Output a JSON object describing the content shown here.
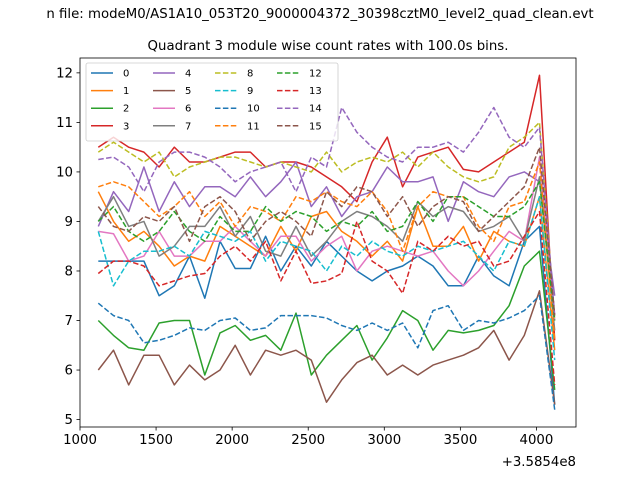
{
  "chart_data": {
    "type": "line",
    "suptitle": "n file: modeM0/AS1A10_053T20_9000004372_30398cztM0_level2_quad_clean.evt",
    "title": "Quadrant 3 module wise count rates with 100.0s bins.",
    "xlabel": "",
    "ylabel": "",
    "x_offset_label": "+3.5854e8",
    "xlim": [
      1000,
      4260
    ],
    "ylim": [
      4.85,
      12.3
    ],
    "x_ticks": [
      1000,
      1500,
      2000,
      2500,
      3000,
      3500,
      4000
    ],
    "x_tick_labels": [
      "1000",
      "1500",
      "2000",
      "2500",
      "3000",
      "3500",
      "4000"
    ],
    "y_ticks": [
      5,
      6,
      7,
      8,
      9,
      10,
      11,
      12
    ],
    "y_tick_labels": [
      "5",
      "6",
      "7",
      "8",
      "9",
      "10",
      "11",
      "12"
    ],
    "grid": false,
    "legend_position": "top-left",
    "legend_columns": 4,
    "x": [
      1120,
      1220,
      1320,
      1420,
      1520,
      1620,
      1720,
      1820,
      1920,
      2020,
      2120,
      2220,
      2320,
      2420,
      2520,
      2620,
      2720,
      2820,
      2920,
      3020,
      3120,
      3220,
      3320,
      3420,
      3520,
      3620,
      3720,
      3820,
      3920,
      4020,
      4120
    ],
    "series": [
      {
        "name": "0",
        "color": "#1f77b4",
        "dash": "solid",
        "values": [
          8.2,
          8.2,
          8.2,
          8.2,
          7.5,
          7.7,
          8.3,
          7.45,
          8.6,
          8.05,
          8.05,
          8.7,
          8.0,
          8.5,
          8.1,
          8.6,
          8.3,
          8.0,
          7.8,
          8.0,
          8.1,
          8.3,
          8.1,
          7.7,
          7.7,
          8.3,
          7.9,
          7.7,
          8.6,
          8.9,
          5.3
        ]
      },
      {
        "name": "1",
        "color": "#ff7f0e",
        "dash": "solid",
        "values": [
          9.6,
          9.0,
          8.6,
          8.8,
          8.5,
          8.1,
          8.3,
          8.2,
          8.9,
          8.7,
          8.5,
          8.3,
          8.9,
          8.4,
          9.1,
          9.2,
          8.8,
          8.6,
          8.3,
          8.6,
          8.2,
          9.3,
          8.5,
          8.5,
          8.9,
          8.2,
          8.8,
          8.6,
          8.5,
          9.5,
          6.4
        ]
      },
      {
        "name": "2",
        "color": "#2ca02c",
        "dash": "solid",
        "values": [
          7.0,
          6.7,
          6.45,
          6.4,
          6.95,
          7.0,
          7.0,
          5.9,
          6.75,
          6.9,
          6.6,
          6.7,
          6.4,
          7.15,
          5.9,
          6.3,
          6.6,
          6.9,
          6.2,
          6.65,
          7.2,
          7.0,
          6.4,
          6.8,
          6.75,
          6.8,
          6.9,
          7.3,
          8.1,
          8.4,
          5.6
        ]
      },
      {
        "name": "3",
        "color": "#d62728",
        "dash": "solid",
        "values": [
          10.5,
          10.7,
          10.5,
          10.4,
          10.1,
          10.5,
          10.2,
          10.2,
          10.3,
          10.4,
          10.4,
          10.1,
          10.2,
          10.2,
          10.1,
          9.9,
          9.7,
          9.4,
          10.2,
          10.7,
          9.7,
          10.3,
          10.4,
          10.5,
          10.05,
          10.0,
          10.2,
          10.4,
          10.6,
          11.95,
          6.6
        ]
      },
      {
        "name": "4",
        "color": "#9467bd",
        "dash": "solid",
        "values": [
          8.9,
          9.6,
          9.2,
          10.1,
          9.2,
          9.8,
          9.3,
          9.7,
          9.7,
          9.5,
          9.9,
          9.5,
          9.8,
          10.2,
          9.3,
          9.7,
          9.1,
          9.5,
          9.6,
          10.1,
          9.8,
          9.8,
          9.9,
          9.0,
          9.8,
          9.6,
          9.5,
          9.9,
          10.0,
          9.8,
          7.5
        ]
      },
      {
        "name": "5",
        "color": "#8c564b",
        "dash": "solid",
        "values": [
          6.0,
          6.4,
          5.7,
          6.3,
          6.3,
          5.7,
          6.1,
          5.8,
          6.0,
          6.5,
          5.9,
          6.4,
          6.3,
          6.4,
          6.2,
          5.35,
          5.8,
          6.15,
          6.3,
          5.9,
          6.1,
          5.9,
          6.1,
          6.2,
          6.3,
          6.45,
          6.8,
          6.2,
          6.7,
          7.6,
          5.3
        ]
      },
      {
        "name": "6",
        "color": "#e377c2",
        "dash": "solid",
        "values": [
          8.8,
          8.75,
          8.2,
          8.3,
          8.8,
          8.3,
          8.3,
          8.6,
          8.6,
          8.9,
          8.6,
          8.3,
          8.7,
          8.7,
          8.2,
          8.5,
          8.7,
          8.0,
          8.4,
          8.5,
          8.4,
          8.3,
          8.4,
          8.0,
          7.7,
          8.0,
          8.4,
          8.8,
          8.6,
          10.3,
          7.0
        ]
      },
      {
        "name": "7",
        "color": "#7f7f7f",
        "dash": "solid",
        "values": [
          9.0,
          9.5,
          8.9,
          9.0,
          8.3,
          8.5,
          8.9,
          8.9,
          9.3,
          8.7,
          9.1,
          8.4,
          8.3,
          8.9,
          8.3,
          8.6,
          9.0,
          9.2,
          9.1,
          8.9,
          8.6,
          9.4,
          9.1,
          9.3,
          9.2,
          8.8,
          8.9,
          9.1,
          8.6,
          9.9,
          6.8
        ]
      },
      {
        "name": "8",
        "color": "#bcbd22",
        "dash": "dashed",
        "values": [
          10.4,
          10.6,
          10.4,
          10.2,
          10.4,
          9.9,
          10.1,
          10.2,
          10.3,
          10.3,
          10.2,
          10.1,
          10.2,
          10.1,
          10.0,
          10.4,
          10.0,
          10.2,
          10.3,
          10.2,
          10.4,
          10.1,
          10.4,
          10.1,
          9.9,
          9.8,
          9.9,
          10.5,
          10.7,
          11.0,
          7.0
        ]
      },
      {
        "name": "9",
        "color": "#17becf",
        "dash": "dashed",
        "values": [
          8.8,
          7.7,
          8.2,
          8.4,
          8.4,
          8.5,
          8.3,
          8.8,
          8.7,
          8.6,
          8.8,
          8.2,
          8.6,
          8.5,
          8.4,
          8.0,
          8.5,
          8.3,
          8.6,
          8.4,
          8.3,
          8.5,
          8.4,
          8.5,
          8.6,
          8.3,
          8.0,
          8.6,
          8.5,
          9.5,
          6.2
        ]
      },
      {
        "name": "10",
        "color": "#1f77b4",
        "dash": "dashed",
        "values": [
          7.35,
          7.1,
          7.0,
          6.55,
          6.6,
          6.7,
          6.85,
          6.8,
          7.0,
          7.05,
          6.8,
          6.85,
          7.1,
          7.1,
          7.1,
          7.05,
          6.9,
          6.8,
          6.95,
          6.8,
          6.95,
          6.45,
          7.2,
          7.3,
          6.8,
          7.0,
          6.95,
          7.05,
          7.2,
          7.5,
          5.2
        ]
      },
      {
        "name": "11",
        "color": "#ff7f0e",
        "dash": "dashed",
        "values": [
          9.7,
          9.8,
          9.7,
          9.4,
          9.1,
          9.3,
          9.6,
          9.1,
          9.4,
          8.9,
          9.3,
          9.2,
          9.0,
          9.5,
          9.4,
          9.6,
          9.4,
          9.3,
          9.6,
          9.2,
          8.4,
          9.3,
          9.6,
          9.5,
          9.5,
          8.9,
          8.6,
          9.3,
          9.4,
          10.2,
          6.6
        ]
      },
      {
        "name": "12",
        "color": "#2ca02c",
        "dash": "dashed",
        "values": [
          9.0,
          9.3,
          8.8,
          8.6,
          8.8,
          9.2,
          8.8,
          8.6,
          9.1,
          8.8,
          8.8,
          9.3,
          9.0,
          9.2,
          9.1,
          8.8,
          9.0,
          8.9,
          9.2,
          8.8,
          8.9,
          9.4,
          9.0,
          9.5,
          9.5,
          9.3,
          9.1,
          9.1,
          9.3,
          9.8,
          7.0
        ]
      },
      {
        "name": "13",
        "color": "#d62728",
        "dash": "dashed",
        "values": [
          7.95,
          8.2,
          8.2,
          8.1,
          7.7,
          7.8,
          7.9,
          7.95,
          8.3,
          8.5,
          8.2,
          8.6,
          7.8,
          8.4,
          7.75,
          7.8,
          7.95,
          9.0,
          8.2,
          8.0,
          7.55,
          8.6,
          8.4,
          8.7,
          8.5,
          8.6,
          8.1,
          8.2,
          8.7,
          9.2,
          5.7
        ]
      },
      {
        "name": "14",
        "color": "#9467bd",
        "dash": "dashed",
        "values": [
          10.25,
          10.3,
          10.1,
          9.6,
          10.2,
          10.4,
          10.4,
          10.3,
          10.1,
          9.8,
          10.0,
          10.1,
          10.2,
          9.6,
          10.3,
          10.1,
          11.3,
          10.8,
          10.5,
          10.3,
          10.2,
          10.5,
          10.5,
          10.6,
          10.4,
          10.8,
          11.3,
          10.7,
          10.5,
          10.9,
          7.1
        ]
      },
      {
        "name": "15",
        "color": "#8c564b",
        "dash": "dashed",
        "values": [
          9.3,
          8.9,
          8.8,
          9.1,
          9.0,
          9.3,
          8.6,
          9.3,
          9.5,
          9.2,
          8.6,
          9.0,
          9.2,
          9.0,
          8.7,
          9.6,
          9.3,
          9.7,
          9.6,
          9.1,
          9.5,
          8.9,
          9.3,
          9.5,
          9.4,
          8.8,
          9.1,
          9.4,
          9.7,
          10.5,
          7.1
        ]
      }
    ]
  }
}
